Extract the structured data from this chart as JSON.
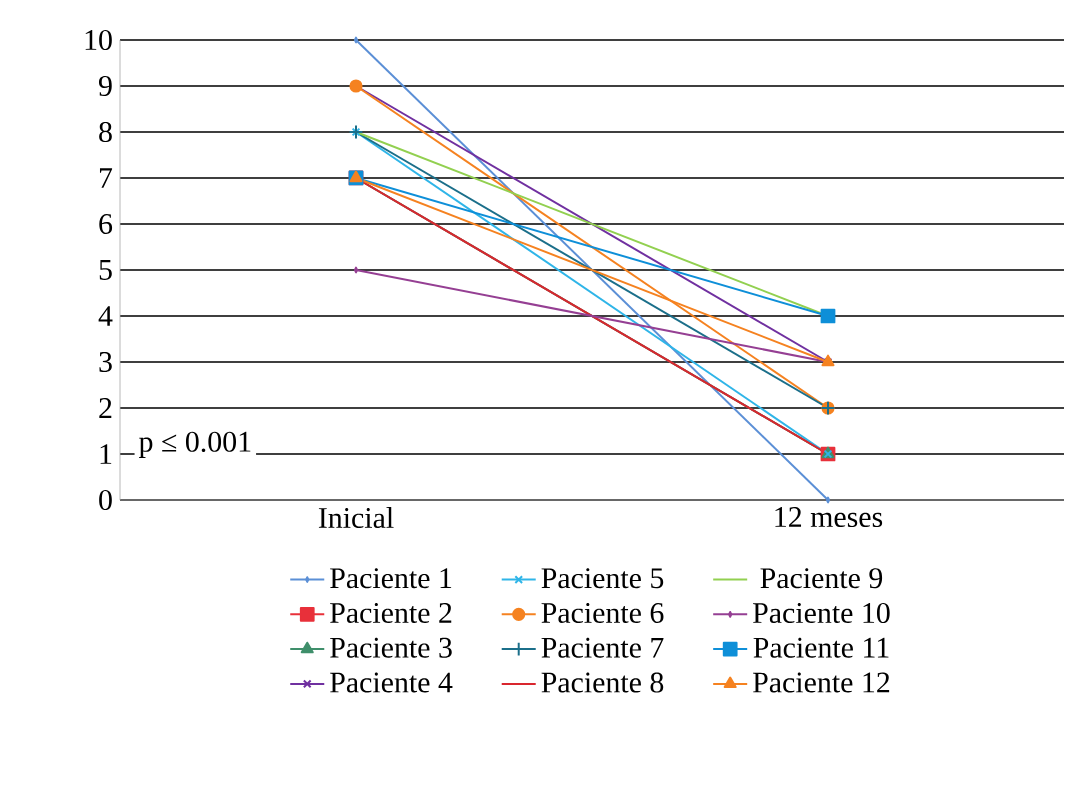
{
  "chart_data": {
    "type": "line",
    "categories": [
      "Inicial",
      "12 meses"
    ],
    "ylim": [
      0,
      10
    ],
    "yticks": [
      0,
      1,
      2,
      3,
      4,
      5,
      6,
      7,
      8,
      9,
      10
    ],
    "grid": "y",
    "legend": "bottom",
    "line_style": "solid",
    "annotations": [
      "p ≤ 0.001"
    ],
    "series": [
      {
        "name": "Paciente 1",
        "color": "#5b8fd6",
        "marker": "diamond",
        "values": [
          10,
          0
        ]
      },
      {
        "name": "Paciente 2",
        "color": "#e8303a",
        "marker": "square",
        "values": [
          7,
          1
        ]
      },
      {
        "name": "Paciente 3",
        "color": "#3f8f6b",
        "marker": "triangle",
        "values": [
          7,
          1
        ]
      },
      {
        "name": "Paciente 4",
        "color": "#7030a0",
        "marker": "cross",
        "values": [
          9,
          3
        ]
      },
      {
        "name": "Paciente 5",
        "color": "#2fb5e8",
        "marker": "cross",
        "values": [
          8,
          1
        ]
      },
      {
        "name": "Paciente 6",
        "color": "#f58220",
        "marker": "circle",
        "values": [
          9,
          2
        ]
      },
      {
        "name": "Paciente 7",
        "color": "#1b6f8a",
        "marker": "plus",
        "values": [
          8,
          2
        ]
      },
      {
        "name": "Paciente 8",
        "color": "#d9262e",
        "marker": "none",
        "values": [
          7,
          1
        ]
      },
      {
        "name": "Paciente 9",
        "color": "#92d050",
        "marker": "none",
        "values": [
          8,
          4
        ]
      },
      {
        "name": "Paciente 10",
        "color": "#953f93",
        "marker": "diamond",
        "values": [
          5,
          3
        ]
      },
      {
        "name": "Paciente 11",
        "color": "#0e8fd8",
        "marker": "square",
        "values": [
          7,
          4
        ]
      },
      {
        "name": "Paciente 12",
        "color": "#f58220",
        "marker": "triangle",
        "values": [
          7,
          3
        ]
      }
    ]
  }
}
